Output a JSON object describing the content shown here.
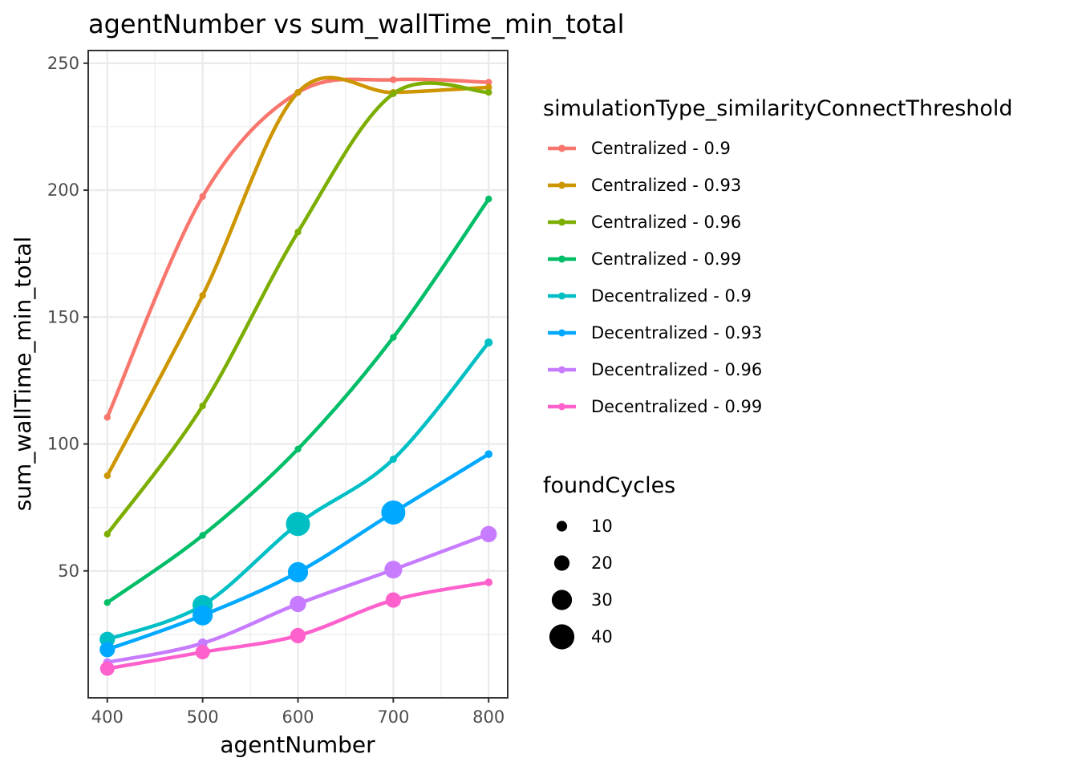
{
  "chart_data": {
    "type": "line",
    "title": "agentNumber  vs  sum_wallTime_min_total",
    "xlabel": "agentNumber",
    "ylabel": "sum_wallTime_min_total",
    "x": [
      400,
      500,
      600,
      700,
      800
    ],
    "x_ticks": [
      400,
      500,
      600,
      700,
      800
    ],
    "y_ticks": [
      50,
      100,
      150,
      200,
      250
    ],
    "xlim": [
      380,
      820
    ],
    "ylim": [
      0,
      255
    ],
    "grid": true,
    "legend_position": "right",
    "color_legend_title": "simulationType_similarityConnectThreshold",
    "size_legend_title": "foundCycles",
    "size_legend": [
      10,
      20,
      30,
      40
    ],
    "series": [
      {
        "name": "Centralized - 0.9",
        "color": "#F8766D",
        "values": [
          110.5,
          197.5,
          238.5,
          243.5,
          242.5
        ],
        "foundCycles": [
          2,
          2,
          2,
          2,
          2
        ]
      },
      {
        "name": "Centralized - 0.93",
        "color": "#CD9600",
        "values": [
          87.5,
          158.5,
          238.5,
          238.5,
          240.5
        ],
        "foundCycles": [
          2,
          2,
          2,
          2,
          2
        ]
      },
      {
        "name": "Centralized - 0.96",
        "color": "#7CAE00",
        "values": [
          64.5,
          115.0,
          183.5,
          238.0,
          238.5
        ],
        "foundCycles": [
          2,
          2,
          2,
          2,
          2
        ]
      },
      {
        "name": "Centralized - 0.99",
        "color": "#00BE67",
        "values": [
          37.5,
          64.0,
          98.0,
          142.0,
          196.5
        ],
        "foundCycles": [
          2,
          2,
          2,
          2,
          2
        ]
      },
      {
        "name": "Decentralized - 0.9",
        "color": "#00BFC4",
        "values": [
          23.0,
          36.5,
          68.5,
          94.0,
          140.0
        ],
        "foundCycles": [
          20,
          30,
          38,
          3,
          5
        ]
      },
      {
        "name": "Decentralized - 0.93",
        "color": "#00A9FF",
        "values": [
          19.0,
          32.5,
          49.5,
          73.0,
          96.0
        ],
        "foundCycles": [
          20,
          30,
          30,
          38,
          4
        ]
      },
      {
        "name": "Decentralized - 0.96",
        "color": "#C77CFF",
        "values": [
          14.0,
          21.5,
          37.0,
          50.5,
          64.5
        ],
        "foundCycles": [
          5,
          8,
          22,
          25,
          22
        ]
      },
      {
        "name": "Decentralized - 0.99",
        "color": "#FF61CC",
        "values": [
          11.5,
          18.0,
          24.5,
          38.5,
          45.5
        ],
        "foundCycles": [
          18,
          18,
          20,
          20,
          4
        ]
      }
    ]
  }
}
